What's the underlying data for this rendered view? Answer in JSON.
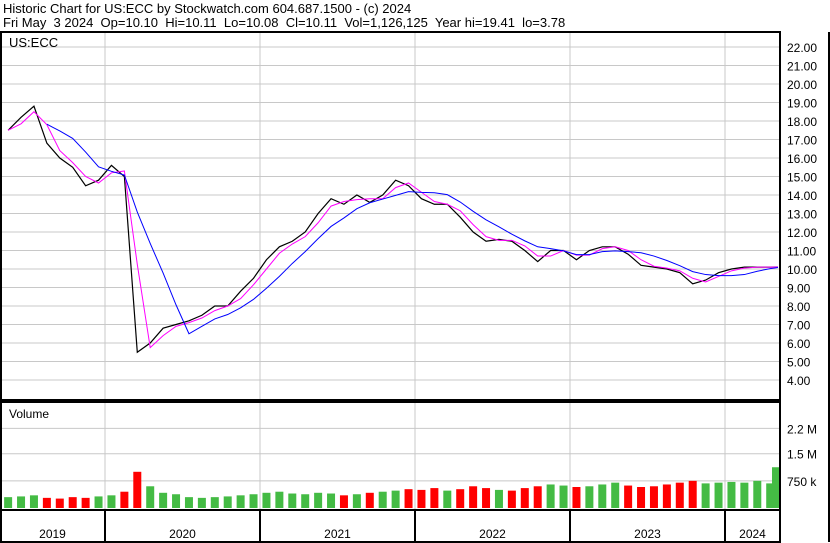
{
  "header": {
    "title": "Historic Chart for US:ECC by Stockwatch.com 604.687.1500 - (c) 2024",
    "quote": "Fri May  3 2024  Op=10.10  Hi=10.11  Lo=10.08  Cl=10.11  Vol=1,126,125  Year hi=19.41  lo=3.78"
  },
  "chart_data": {
    "type": "line",
    "symbol": "US:ECC",
    "volume_label": "Volume",
    "price_axis": {
      "ylim": [
        3.3,
        22.8
      ],
      "ticks": [
        "22.00",
        "21.00",
        "20.00",
        "19.00",
        "18.00",
        "17.00",
        "16.00",
        "15.00",
        "14.00",
        "13.00",
        "12.00",
        "11.00",
        "10.00",
        "9.00",
        "8.00",
        "7.00",
        "6.00",
        "5.00",
        "4.00"
      ]
    },
    "volume_axis": {
      "ticks": [
        {
          "label": "2.2 M",
          "value": 2200
        },
        {
          "label": "1.5 M",
          "value": 1500
        },
        {
          "label": "750 k",
          "value": 750
        }
      ],
      "unit": "thousands"
    },
    "years": [
      "2019",
      "2020",
      "2021",
      "2022",
      "2023",
      "2024"
    ],
    "grid": true,
    "colors": {
      "price": "#000000",
      "short_ma": "#ff00ff",
      "long_ma": "#0000ff",
      "vol_up": "#44bb44",
      "vol_down": "#ff0000"
    },
    "dates": [
      "2019-05",
      "2019-06",
      "2019-07",
      "2019-08",
      "2019-09",
      "2019-10",
      "2019-11",
      "2019-12",
      "2020-01",
      "2020-02",
      "2020-03",
      "2020-04",
      "2020-05",
      "2020-06",
      "2020-07",
      "2020-08",
      "2020-09",
      "2020-10",
      "2020-11",
      "2020-12",
      "2021-01",
      "2021-02",
      "2021-03",
      "2021-04",
      "2021-05",
      "2021-06",
      "2021-07",
      "2021-08",
      "2021-09",
      "2021-10",
      "2021-11",
      "2021-12",
      "2022-01",
      "2022-02",
      "2022-03",
      "2022-04",
      "2022-05",
      "2022-06",
      "2022-07",
      "2022-08",
      "2022-09",
      "2022-10",
      "2022-11",
      "2022-12",
      "2023-01",
      "2023-02",
      "2023-03",
      "2023-04",
      "2023-05",
      "2023-06",
      "2023-07",
      "2023-08",
      "2023-09",
      "2023-10",
      "2023-11",
      "2023-12",
      "2024-01",
      "2024-02",
      "2024-03",
      "2024-04",
      "2024-05"
    ],
    "close": [
      17.5,
      18.2,
      18.8,
      16.8,
      16.0,
      15.5,
      14.5,
      14.8,
      15.6,
      15.0,
      5.5,
      6.0,
      6.8,
      7.0,
      7.2,
      7.5,
      8.0,
      8.0,
      8.8,
      9.5,
      10.5,
      11.2,
      11.5,
      12.0,
      13.0,
      13.8,
      13.5,
      14.0,
      13.6,
      14.0,
      14.8,
      14.5,
      13.8,
      13.5,
      13.5,
      12.8,
      12.0,
      11.5,
      11.6,
      11.5,
      11.0,
      10.4,
      11.0,
      11.0,
      10.5,
      11.0,
      11.2,
      11.2,
      10.8,
      10.2,
      10.1,
      10.0,
      9.8,
      9.2,
      9.4,
      9.8,
      10.0,
      10.1,
      10.1,
      10.1,
      10.11
    ],
    "volume_k": [
      300,
      320,
      350,
      280,
      260,
      300,
      280,
      320,
      350,
      450,
      1000,
      600,
      420,
      380,
      300,
      280,
      300,
      320,
      350,
      380,
      420,
      450,
      400,
      380,
      420,
      400,
      350,
      380,
      420,
      450,
      480,
      520,
      500,
      550,
      480,
      520,
      600,
      550,
      500,
      480,
      550,
      600,
      650,
      620,
      580,
      600,
      650,
      700,
      620,
      580,
      600,
      650,
      700,
      750,
      680,
      700,
      720,
      700,
      750,
      680,
      1126
    ]
  }
}
